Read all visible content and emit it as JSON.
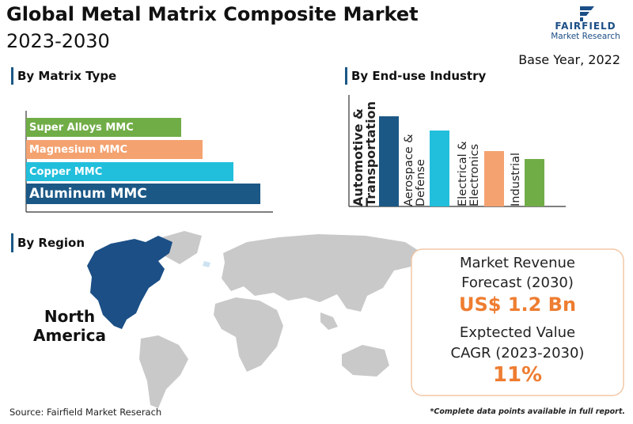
{
  "header": {
    "title": "Global Metal Matrix Composite Market",
    "subtitle": "2023-2030",
    "base_year": "Base Year, 2022",
    "logo_name": "FAIRFIELD",
    "logo_tagline": "Market Research"
  },
  "chart_data": [
    {
      "type": "bar",
      "orientation": "horizontal",
      "title": "By Matrix Type",
      "categories": [
        "Super Alloys MMC",
        "Magnesium MMC",
        "Copper MMC",
        "Aluminum MMC"
      ],
      "values": [
        196,
        223,
        262,
        296
      ],
      "colors": [
        "#71ad47",
        "#f4a26f",
        "#21bfdc",
        "#1b5886"
      ],
      "xlim": [
        0,
        300
      ]
    },
    {
      "type": "bar",
      "orientation": "vertical",
      "title": "By End-use Industry",
      "categories": [
        "Automotive & Transportation",
        "Aerospace & Defense",
        "Electrical & Electronics",
        "Industrial"
      ],
      "values": [
        114,
        96,
        70,
        60
      ],
      "colors": [
        "#1b5886",
        "#21bfdc",
        "#f4a26f",
        "#71ad47"
      ],
      "ylim": [
        0,
        130
      ]
    }
  ],
  "region": {
    "title": "By Region",
    "highlight": "North America"
  },
  "stats": {
    "revenue_label_1": "Market Revenue",
    "revenue_label_2": "Forecast (2030)",
    "revenue_value": "US$ 1.2 Bn",
    "cagr_label_1": "Exptected Value",
    "cagr_label_2": "CAGR (2023-2030)",
    "cagr_value": "11%"
  },
  "footer": {
    "source": "Source: Fairfield Market Reserach",
    "note": "*Complete data points available in full report."
  }
}
